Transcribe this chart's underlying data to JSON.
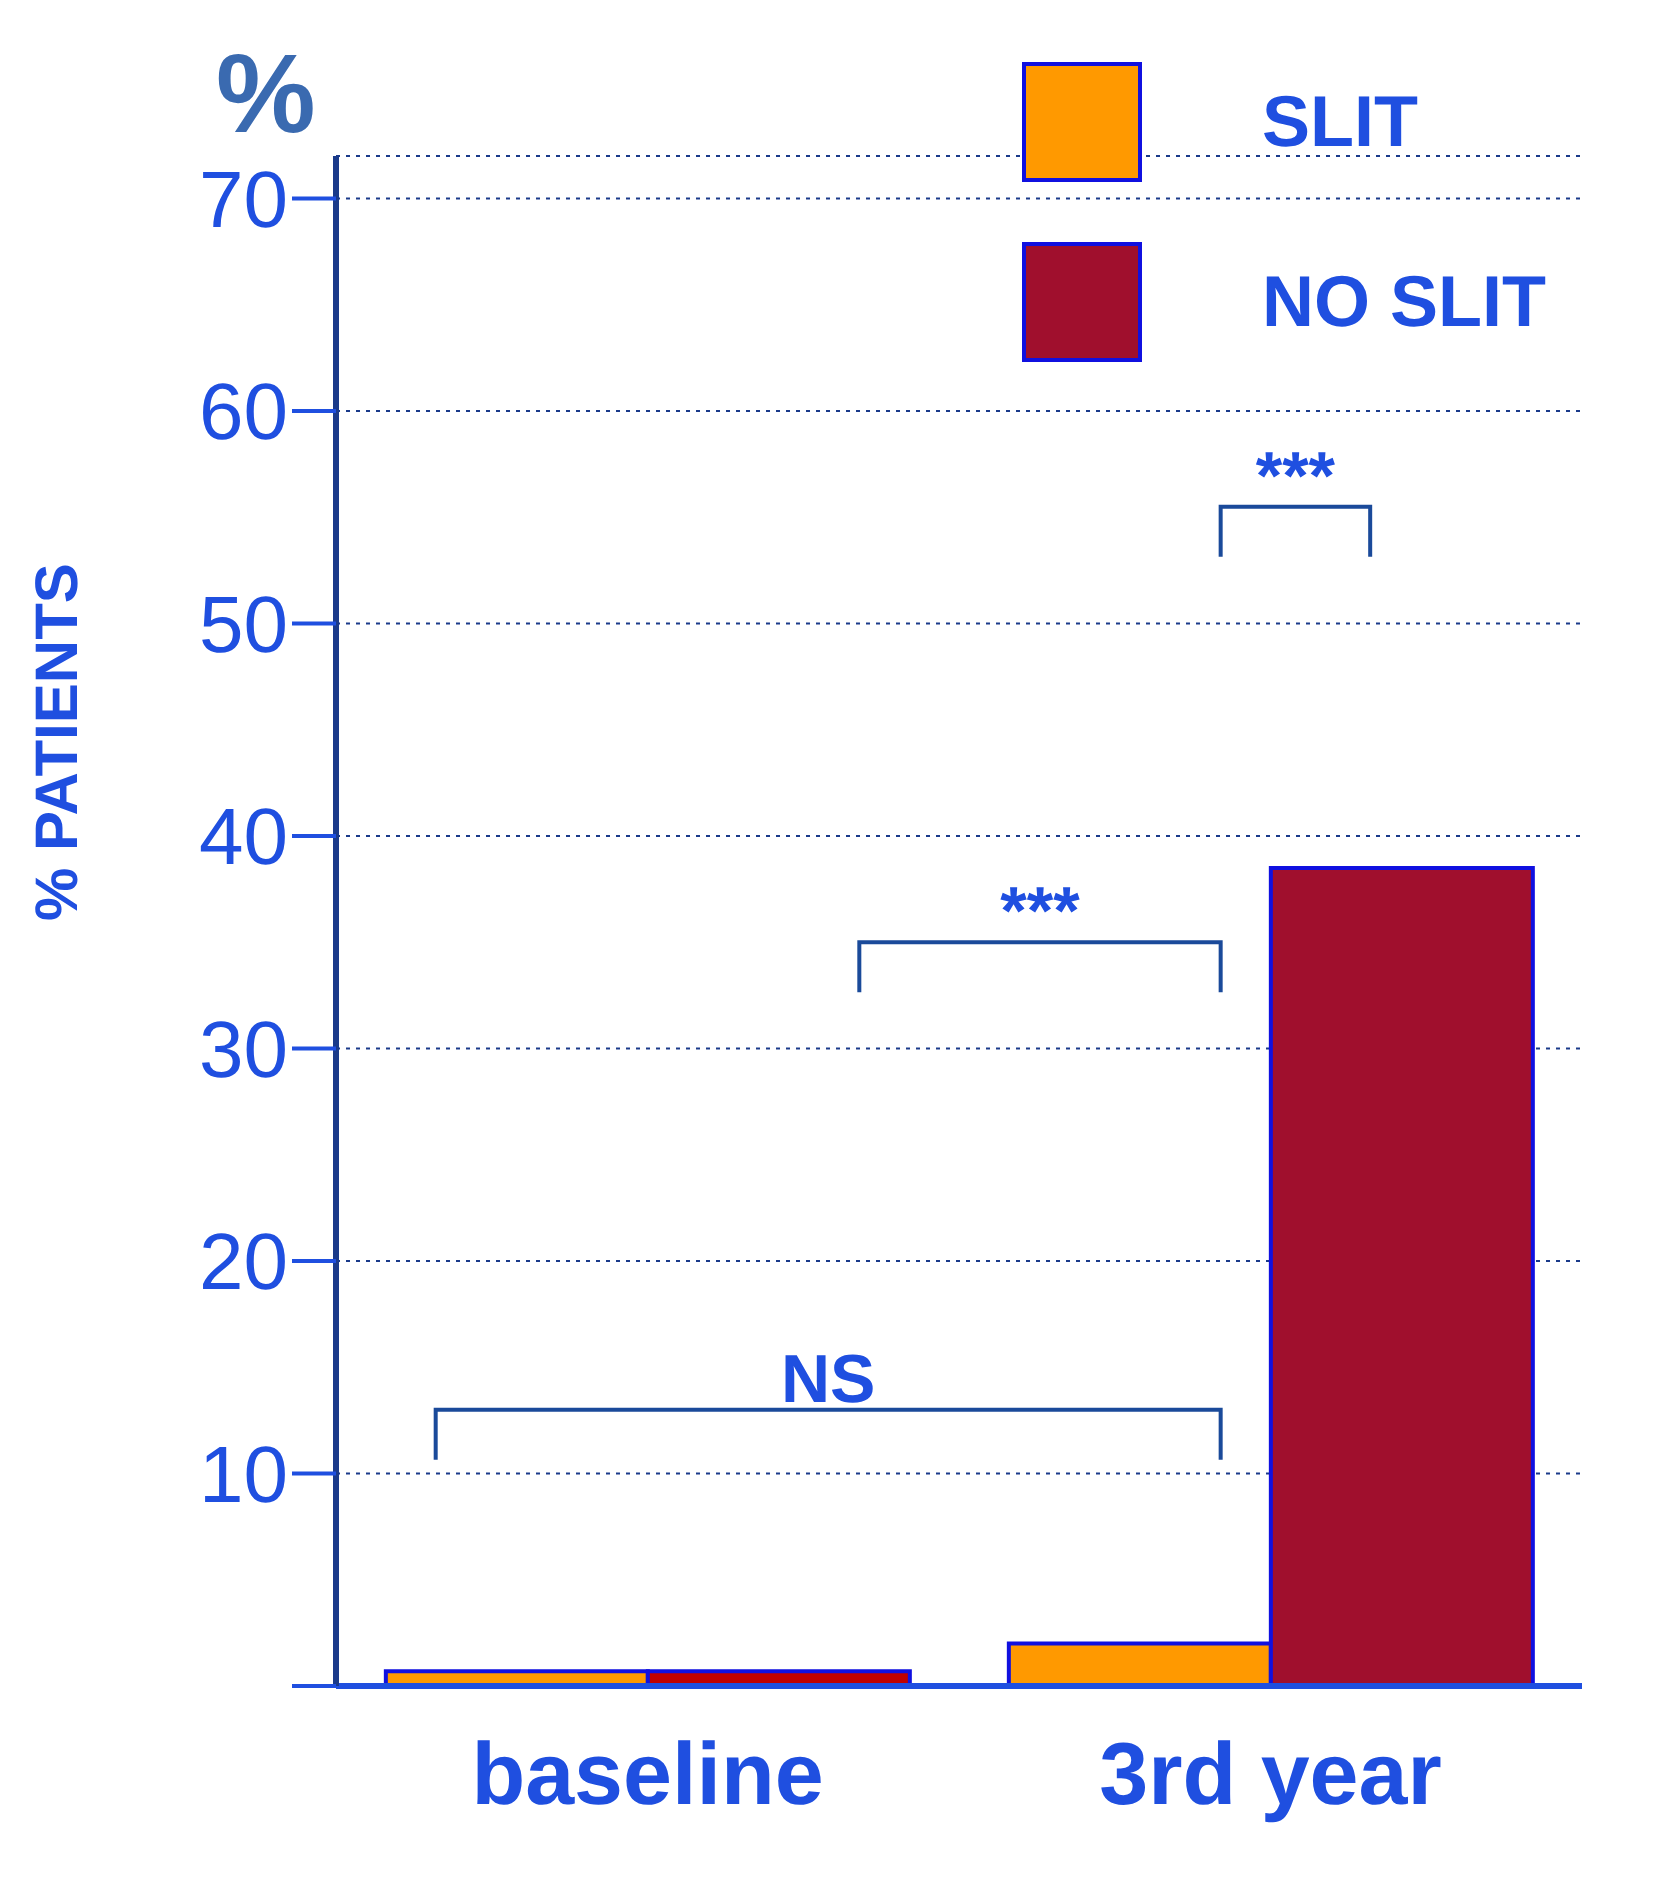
{
  "chart_data": {
    "type": "bar",
    "ylabel": "% PATIENTS",
    "categories": [
      "baseline",
      "3rd year"
    ],
    "series": [
      {
        "name": "SLIT",
        "color": "#ff9900",
        "values": [
          0.7,
          2
        ]
      },
      {
        "name": "NO SLIT",
        "color": "#a00f2d",
        "colors": [
          "#c00000",
          "#a00f2d"
        ],
        "values": [
          0.7,
          38.5
        ]
      }
    ],
    "ylim": [
      0,
      72
    ],
    "yticks": [
      {
        "value": 0,
        "label": null
      },
      10,
      20,
      30,
      40,
      50,
      60,
      70
    ],
    "grid": "y",
    "legend": "top right",
    "annotations": [
      "%",
      "NS",
      "***",
      "***"
    ]
  }
}
